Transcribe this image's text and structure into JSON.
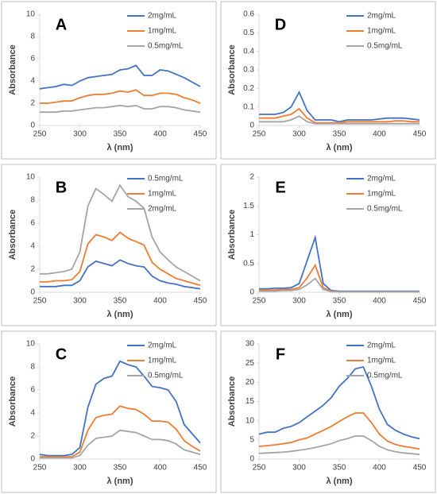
{
  "chart_data": [
    {
      "type": "line",
      "title": "A",
      "xlabel": "λ (nm)",
      "ylabel": "Absorbance",
      "x": [
        250,
        260,
        270,
        280,
        290,
        300,
        310,
        320,
        330,
        340,
        350,
        360,
        370,
        380,
        390,
        400,
        410,
        420,
        430,
        440,
        450
      ],
      "xlim": [
        250,
        450
      ],
      "xticks": [
        250,
        300,
        350,
        400,
        450
      ],
      "ylim": [
        0,
        10
      ],
      "yticks": [
        0,
        2,
        4,
        6,
        8,
        10
      ],
      "legend": "top-right",
      "series": [
        {
          "name": "2mg/mL",
          "color": "#4472c4",
          "values": [
            3.3,
            3.4,
            3.5,
            3.7,
            3.6,
            4.0,
            4.3,
            4.4,
            4.5,
            4.6,
            5.0,
            5.1,
            5.4,
            4.5,
            4.5,
            5.0,
            4.9,
            4.6,
            4.3,
            3.9,
            3.5
          ]
        },
        {
          "name": "1mg/mL",
          "color": "#ed7d31",
          "values": [
            2.0,
            2.0,
            2.1,
            2.2,
            2.2,
            2.5,
            2.7,
            2.8,
            2.8,
            2.9,
            3.1,
            3.0,
            3.2,
            2.7,
            2.7,
            2.9,
            2.9,
            2.8,
            2.5,
            2.3,
            2.0
          ]
        },
        {
          "name": "0.5mg/mL",
          "color": "#a5a5a5",
          "values": [
            1.2,
            1.2,
            1.2,
            1.3,
            1.3,
            1.4,
            1.5,
            1.6,
            1.6,
            1.7,
            1.8,
            1.7,
            1.8,
            1.5,
            1.5,
            1.7,
            1.7,
            1.6,
            1.4,
            1.3,
            1.2
          ]
        }
      ]
    },
    {
      "type": "line",
      "title": "D",
      "xlabel": "λ (nm)",
      "ylabel": "Absorbance",
      "x": [
        250,
        260,
        270,
        280,
        290,
        300,
        310,
        320,
        330,
        340,
        350,
        360,
        370,
        380,
        390,
        400,
        410,
        420,
        430,
        440,
        450
      ],
      "xlim": [
        250,
        450
      ],
      "xticks": [
        250,
        300,
        350,
        400,
        450
      ],
      "ylim": [
        0,
        0.6
      ],
      "yticks": [
        0,
        0.1,
        0.2,
        0.3,
        0.4,
        0.5,
        0.6
      ],
      "legend": "top-right",
      "series": [
        {
          "name": "2mg/mL",
          "color": "#4472c4",
          "values": [
            0.06,
            0.06,
            0.06,
            0.07,
            0.1,
            0.18,
            0.08,
            0.03,
            0.03,
            0.03,
            0.02,
            0.03,
            0.03,
            0.03,
            0.03,
            0.035,
            0.04,
            0.04,
            0.04,
            0.035,
            0.03
          ]
        },
        {
          "name": "1mg/mL",
          "color": "#ed7d31",
          "values": [
            0.04,
            0.04,
            0.04,
            0.05,
            0.06,
            0.09,
            0.04,
            0.015,
            0.015,
            0.015,
            0.015,
            0.02,
            0.02,
            0.02,
            0.02,
            0.02,
            0.02,
            0.025,
            0.025,
            0.02,
            0.02
          ]
        },
        {
          "name": "0.5mg/mL",
          "color": "#a5a5a5",
          "values": [
            0.02,
            0.02,
            0.02,
            0.02,
            0.03,
            0.05,
            0.02,
            0.01,
            0.01,
            0.01,
            0.01,
            0.01,
            0.01,
            0.01,
            0.01,
            0.01,
            0.01,
            0.01,
            0.01,
            0.01,
            0.01
          ]
        }
      ]
    },
    {
      "type": "line",
      "title": "B",
      "xlabel": "λ (nm)",
      "ylabel": "Absorbance",
      "x": [
        250,
        260,
        270,
        280,
        290,
        300,
        310,
        320,
        330,
        340,
        350,
        360,
        370,
        380,
        390,
        400,
        410,
        420,
        430,
        440,
        450
      ],
      "xlim": [
        250,
        450
      ],
      "xticks": [
        250,
        300,
        350,
        400,
        450
      ],
      "ylim": [
        0,
        10
      ],
      "yticks": [
        0,
        2,
        4,
        6,
        8,
        10
      ],
      "legend": "top-right",
      "series": [
        {
          "name": "0.5mg/mL",
          "color": "#4472c4",
          "values": [
            0.5,
            0.5,
            0.5,
            0.6,
            0.6,
            1.0,
            2.2,
            2.7,
            2.5,
            2.3,
            2.8,
            2.5,
            2.3,
            2.2,
            1.4,
            1.0,
            0.8,
            0.7,
            0.5,
            0.4,
            0.3
          ]
        },
        {
          "name": "1mg/mL",
          "color": "#ed7d31",
          "values": [
            0.9,
            0.9,
            1.0,
            1.0,
            1.1,
            1.8,
            4.2,
            5.0,
            4.8,
            4.5,
            5.2,
            4.7,
            4.4,
            4.1,
            2.6,
            2.0,
            1.6,
            1.2,
            1.0,
            0.8,
            0.6
          ]
        },
        {
          "name": "2mg/mL",
          "color": "#a5a5a5",
          "values": [
            1.6,
            1.6,
            1.7,
            1.8,
            2.0,
            3.5,
            7.5,
            9.0,
            8.5,
            7.9,
            9.3,
            8.3,
            7.9,
            7.3,
            4.8,
            3.5,
            2.8,
            2.2,
            1.8,
            1.4,
            1.0
          ]
        }
      ]
    },
    {
      "type": "line",
      "title": "E",
      "xlabel": "λ (nm)",
      "ylabel": "Absorbance",
      "x": [
        250,
        260,
        270,
        280,
        290,
        300,
        310,
        320,
        330,
        340,
        350,
        360,
        370,
        380,
        390,
        400,
        410,
        420,
        430,
        440,
        450
      ],
      "xlim": [
        250,
        450
      ],
      "xticks": [
        250,
        300,
        350,
        400,
        450
      ],
      "ylim": [
        0,
        2
      ],
      "yticks": [
        0,
        0.5,
        1,
        1.5,
        2
      ],
      "legend": "top-right",
      "series": [
        {
          "name": "2mg/mL",
          "color": "#4472c4",
          "values": [
            0.06,
            0.06,
            0.07,
            0.07,
            0.08,
            0.15,
            0.55,
            0.95,
            0.15,
            0.03,
            0.02,
            0.02,
            0.02,
            0.02,
            0.02,
            0.02,
            0.02,
            0.02,
            0.02,
            0.02,
            0.02
          ]
        },
        {
          "name": "1mg/mL",
          "color": "#ed7d31",
          "values": [
            0.04,
            0.04,
            0.04,
            0.05,
            0.05,
            0.08,
            0.25,
            0.47,
            0.08,
            0.02,
            0.01,
            0.01,
            0.01,
            0.01,
            0.01,
            0.01,
            0.01,
            0.01,
            0.01,
            0.01,
            0.01
          ]
        },
        {
          "name": "0.5mg/mL",
          "color": "#a5a5a5",
          "values": [
            0.02,
            0.02,
            0.02,
            0.03,
            0.03,
            0.05,
            0.13,
            0.24,
            0.05,
            0.01,
            0.01,
            0.01,
            0.01,
            0.01,
            0.01,
            0.01,
            0.01,
            0.01,
            0.01,
            0.01,
            0.01
          ]
        }
      ]
    },
    {
      "type": "line",
      "title": "C",
      "xlabel": "λ (nm)",
      "ylabel": "Absorbance",
      "x": [
        250,
        260,
        270,
        280,
        290,
        300,
        310,
        320,
        330,
        340,
        350,
        360,
        370,
        380,
        390,
        400,
        410,
        420,
        430,
        440,
        450
      ],
      "xlim": [
        250,
        450
      ],
      "xticks": [
        250,
        300,
        350,
        400,
        450
      ],
      "ylim": [
        0,
        10
      ],
      "yticks": [
        0,
        2,
        4,
        6,
        8,
        10
      ],
      "legend": "top-right",
      "series": [
        {
          "name": "2mg/mL",
          "color": "#4472c4",
          "values": [
            0.4,
            0.3,
            0.3,
            0.3,
            0.4,
            1.0,
            4.5,
            6.5,
            7.0,
            7.2,
            8.5,
            8.2,
            8.0,
            7.2,
            6.3,
            6.2,
            6.0,
            5.0,
            3.0,
            2.2,
            1.4
          ]
        },
        {
          "name": "1mg/mL",
          "color": "#ed7d31",
          "values": [
            0.2,
            0.2,
            0.2,
            0.2,
            0.2,
            0.6,
            2.5,
            3.6,
            3.8,
            3.9,
            4.6,
            4.4,
            4.3,
            3.9,
            3.3,
            3.3,
            3.2,
            2.6,
            1.6,
            1.1,
            0.7
          ]
        },
        {
          "name": "0.5mg/mL",
          "color": "#a5a5a5",
          "values": [
            0.1,
            0.1,
            0.1,
            0.1,
            0.1,
            0.3,
            1.2,
            1.8,
            1.9,
            2.0,
            2.5,
            2.4,
            2.3,
            2.0,
            1.7,
            1.7,
            1.6,
            1.3,
            0.8,
            0.6,
            0.4
          ]
        }
      ]
    },
    {
      "type": "line",
      "title": "F",
      "xlabel": "λ (nm)",
      "ylabel": "Absorbance",
      "x": [
        250,
        260,
        270,
        280,
        290,
        300,
        310,
        320,
        330,
        340,
        350,
        360,
        370,
        380,
        390,
        400,
        410,
        420,
        430,
        440,
        450
      ],
      "xlim": [
        250,
        450
      ],
      "xticks": [
        250,
        300,
        350,
        400,
        450
      ],
      "ylim": [
        0,
        30
      ],
      "yticks": [
        0,
        5,
        10,
        15,
        20,
        25,
        30
      ],
      "legend": "top-right",
      "series": [
        {
          "name": "2mg/mL",
          "color": "#4472c4",
          "values": [
            6.5,
            7,
            7,
            8,
            8.5,
            9.5,
            11,
            12.5,
            14,
            16,
            19,
            21,
            23.5,
            24,
            19,
            13,
            9,
            7.5,
            6.5,
            5.8,
            5.3
          ]
        },
        {
          "name": "1mg/mL",
          "color": "#ed7d31",
          "values": [
            3.3,
            3.5,
            3.7,
            4,
            4.3,
            5,
            5.5,
            6.5,
            7.5,
            8.5,
            9.8,
            11,
            12,
            12,
            9.5,
            6.5,
            4.7,
            3.8,
            3.3,
            3,
            2.6
          ]
        },
        {
          "name": "0.5mg/mL",
          "color": "#a5a5a5",
          "values": [
            1.5,
            1.6,
            1.7,
            1.8,
            2,
            2.3,
            2.6,
            3,
            3.5,
            4,
            4.8,
            5.3,
            6,
            6,
            4.8,
            3.3,
            2.4,
            1.9,
            1.6,
            1.4,
            1.2
          ]
        }
      ]
    }
  ]
}
